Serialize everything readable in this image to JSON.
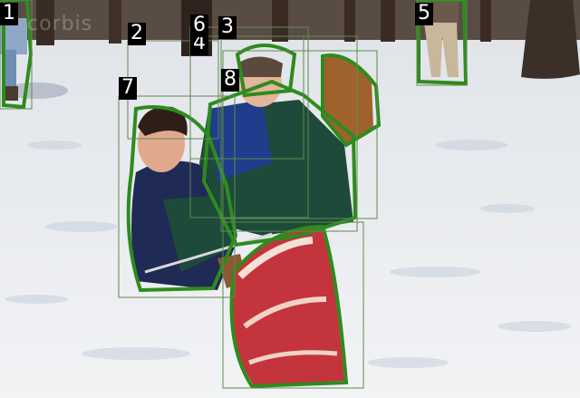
{
  "image": {
    "description_colors": {
      "snow": "#eef0f3",
      "snow_shadow": "#c9d2de",
      "tree": "#3a2c22",
      "mask_outline": "#2e8b1e",
      "box": "#5f8a4f",
      "jacket_navy": "#1f2a55",
      "jacket_green": "#1e4a3a",
      "mitt_brown": "#a0622d",
      "meat_red": "#c4343c"
    }
  },
  "watermark": {
    "text": "corbis"
  },
  "annotations": [
    {
      "id": "1",
      "label": "1"
    },
    {
      "id": "2",
      "label": "2"
    },
    {
      "id": "3",
      "label": "3"
    },
    {
      "id": "4",
      "label": "4"
    },
    {
      "id": "5",
      "label": "5"
    },
    {
      "id": "6",
      "label": "6"
    },
    {
      "id": "7",
      "label": "7"
    },
    {
      "id": "8",
      "label": "8"
    }
  ]
}
